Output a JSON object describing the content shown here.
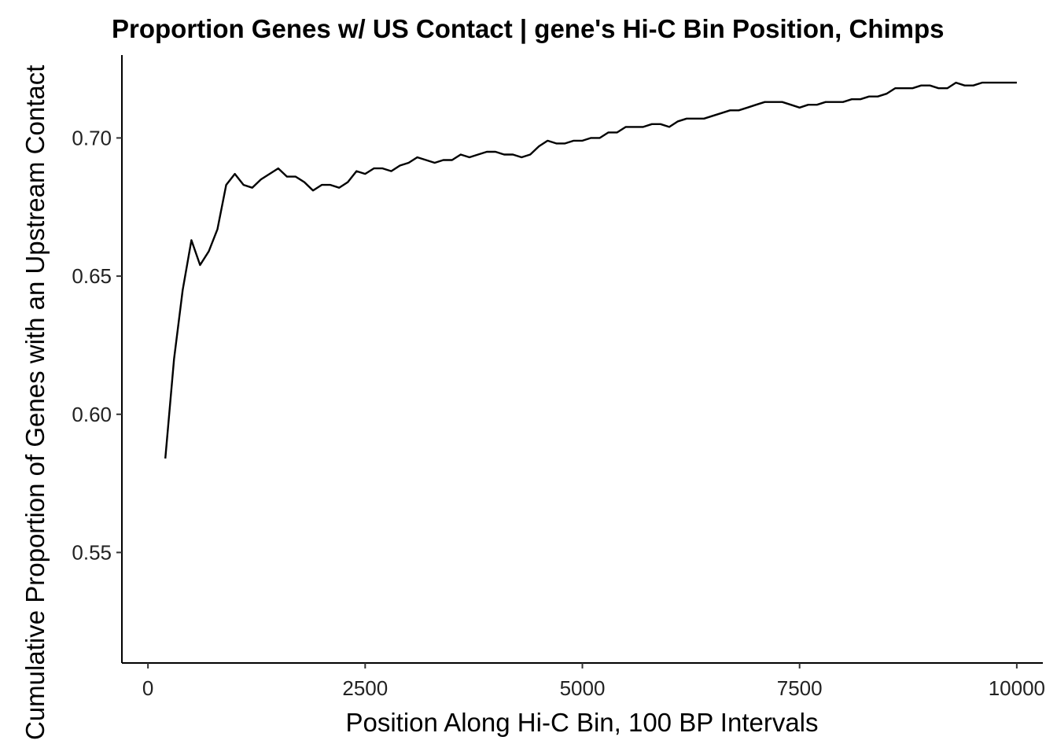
{
  "chart_data": {
    "type": "line",
    "title": "Proportion Genes w/ US Contact | gene's Hi-C Bin Position, Chimps",
    "xlabel": "Position Along Hi-C Bin, 100 BP Intervals",
    "ylabel": "Cumulative Proportion of Genes with an Upstream Contact",
    "xlim": [
      -300,
      10300
    ],
    "ylim": [
      0.51,
      0.73
    ],
    "xticks": [
      0,
      2500,
      5000,
      7500,
      10000
    ],
    "xtick_labels": [
      "0",
      "2500",
      "5000",
      "7500",
      "10000"
    ],
    "yticks": [
      0.55,
      0.6,
      0.65,
      0.7
    ],
    "ytick_labels": [
      "0.55",
      "0.60",
      "0.65",
      "0.70"
    ],
    "grid": false,
    "legend": "none",
    "line_color": "#000000",
    "series": [
      {
        "x": [
          200,
          300,
          400,
          500,
          600,
          700,
          800,
          900,
          1000,
          1100,
          1200,
          1300,
          1400,
          1500,
          1600,
          1700,
          1800,
          1900,
          2000,
          2100,
          2200,
          2300,
          2400,
          2500,
          2600,
          2700,
          2800,
          2900,
          3000,
          3100,
          3200,
          3300,
          3400,
          3500,
          3600,
          3700,
          3800,
          3900,
          4000,
          4100,
          4200,
          4300,
          4400,
          4500,
          4600,
          4700,
          4800,
          4900,
          5000,
          5100,
          5200,
          5300,
          5400,
          5500,
          5600,
          5700,
          5800,
          5900,
          6000,
          6100,
          6200,
          6300,
          6400,
          6500,
          6600,
          6700,
          6800,
          6900,
          7000,
          7100,
          7200,
          7300,
          7400,
          7500,
          7600,
          7700,
          7800,
          7900,
          8000,
          8100,
          8200,
          8300,
          8400,
          8500,
          8600,
          8700,
          8800,
          8900,
          9000,
          9100,
          9200,
          9300,
          9400,
          9500,
          9600,
          9700,
          9800,
          9900,
          10000
        ],
        "values": [
          0.584,
          0.62,
          0.645,
          0.663,
          0.654,
          0.659,
          0.667,
          0.683,
          0.687,
          0.683,
          0.682,
          0.685,
          0.687,
          0.689,
          0.686,
          0.686,
          0.684,
          0.681,
          0.683,
          0.683,
          0.682,
          0.684,
          0.688,
          0.687,
          0.689,
          0.689,
          0.688,
          0.69,
          0.691,
          0.693,
          0.692,
          0.691,
          0.692,
          0.692,
          0.694,
          0.693,
          0.694,
          0.695,
          0.695,
          0.694,
          0.694,
          0.693,
          0.694,
          0.697,
          0.699,
          0.698,
          0.698,
          0.699,
          0.699,
          0.7,
          0.7,
          0.702,
          0.702,
          0.704,
          0.704,
          0.704,
          0.705,
          0.705,
          0.704,
          0.706,
          0.707,
          0.707,
          0.707,
          0.708,
          0.709,
          0.71,
          0.71,
          0.711,
          0.712,
          0.713,
          0.713,
          0.713,
          0.712,
          0.711,
          0.712,
          0.712,
          0.713,
          0.713,
          0.713,
          0.714,
          0.714,
          0.715,
          0.715,
          0.716,
          0.718,
          0.718,
          0.718,
          0.719,
          0.719,
          0.718,
          0.718,
          0.72,
          0.719,
          0.719,
          0.72,
          0.72,
          0.72,
          0.72,
          0.72
        ]
      }
    ]
  }
}
